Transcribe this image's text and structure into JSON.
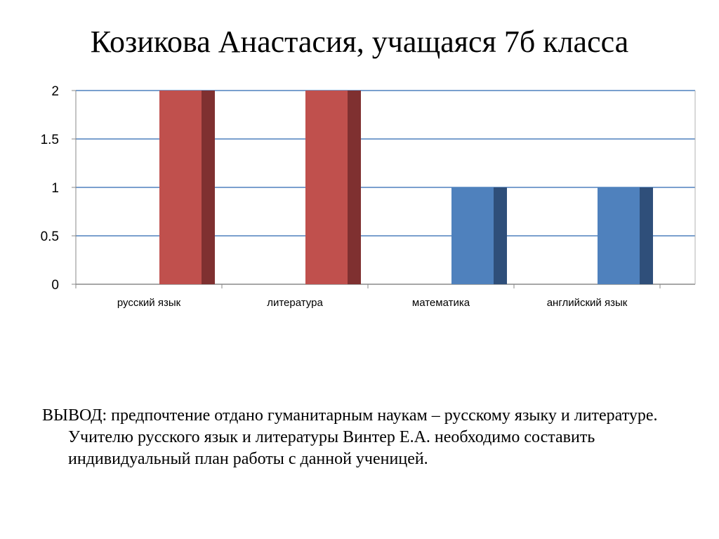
{
  "slide": {
    "title": "Козикова Анастасия, учащаяся 7б  класса",
    "conclusion": "ВЫВОД: предпочтение отдано гуманитарным наукам – русскому языку и литературе. Учителю русского язык и литературы Винтер Е.А. необходимо составить индивидуальный план работы с данной ученицей."
  },
  "chart_data": {
    "type": "bar",
    "style": "3d",
    "categories": [
      "русский язык",
      "литература",
      "математика",
      "английский язык"
    ],
    "values": [
      2,
      2,
      1,
      1
    ],
    "bar_colors": [
      "#C0504D",
      "#C0504D",
      "#4F81BD",
      "#4F81BD"
    ],
    "bar_side_colors": [
      "#7F3030",
      "#7F3030",
      "#2F4F7A",
      "#2F4F7A"
    ],
    "ylim": [
      0,
      2
    ],
    "y_ticks": [
      "0",
      "0.5",
      "1",
      "1.5",
      "2"
    ],
    "grid": true,
    "gridline_color": "#4F81BD",
    "legend": "none",
    "xlabel": "",
    "ylabel": ""
  }
}
